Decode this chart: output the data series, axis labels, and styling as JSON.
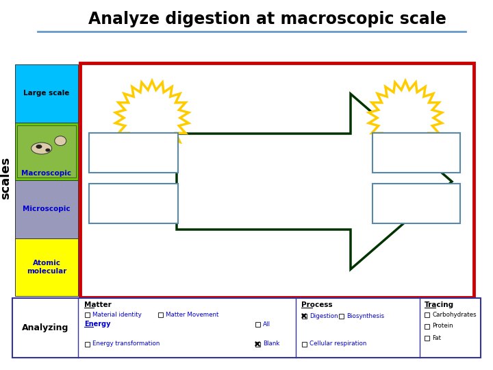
{
  "title": "Analyze digestion at macroscopic scale",
  "title_fontsize": 17,
  "bg_color": "#ffffff",
  "sidebar_colors_btot": [
    "#ffff00",
    "#9999bb",
    "#66cc00",
    "#00bfff"
  ],
  "labels_btot": [
    "Atomic\nmolecular",
    "Microscopic",
    "Macroscopic",
    "Large scale"
  ],
  "label_colors_btot": [
    "#0000cc",
    "#0000cc",
    "#0000cc",
    "#000000"
  ],
  "main_border_color": "#cc0000",
  "arrow_color": "#003300",
  "sun_color": "#ffcc00",
  "rect_border": "#5588aa",
  "bottom_border": "#333399",
  "scales_text": "scales",
  "analyzing_text": "Analyzing",
  "matter_text": "Matter",
  "energy_text": "Energy",
  "process_text": "Process",
  "tracing_text": "Tracing",
  "matter_row1": [
    "Material identity",
    "Matter Movement"
  ],
  "matter_row2": [
    "Energy transformation"
  ],
  "matter_right": [
    "All",
    "Blank"
  ],
  "process_row1": [
    "Digestion",
    "Biosynthesis"
  ],
  "process_row2": [
    "Cellular respiration"
  ],
  "tracing_items": [
    "Carbohydrates",
    "Protein",
    "Fat"
  ],
  "checked": [
    "Digestion",
    "Blank"
  ]
}
